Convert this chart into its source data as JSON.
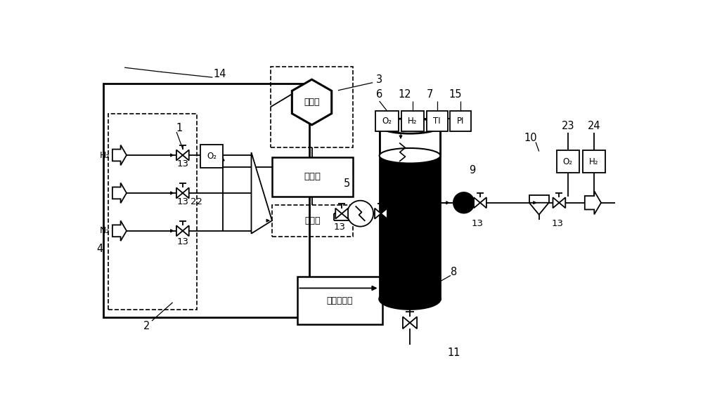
{
  "bg_color": "#ffffff",
  "lc": "#000000",
  "labels": {
    "computer": "计算机",
    "controller": "控制器",
    "gas_mixer": "配气箱",
    "temp_controller": "温度控制器"
  },
  "fig_width": 10.0,
  "fig_height": 5.84
}
